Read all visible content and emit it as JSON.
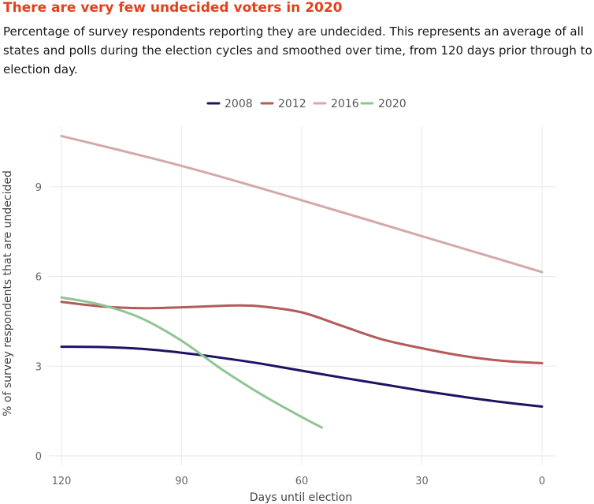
{
  "header": {
    "title": "There are very few undecided voters in 2020",
    "subtitle": "Percentage of survey respondents reporting they are undecided. This represents an average of all states and polls during the election cycles and smoothed over time, from 120 days prior through to election day."
  },
  "chart_data": {
    "type": "line",
    "title": "There are very few undecided voters in 2020",
    "xlabel": "Days until election",
    "ylabel": "% of survey respondents that are undecided",
    "x_reversed": true,
    "xlim": [
      0,
      120
    ],
    "ylim": [
      0,
      11
    ],
    "x_ticks": [
      120,
      90,
      60,
      30,
      0
    ],
    "y_ticks": [
      0,
      3,
      6,
      9
    ],
    "grid": true,
    "legend_position": "top-center",
    "series": [
      {
        "name": "2008",
        "color": "#1b1464",
        "x": [
          120,
          110,
          100,
          90,
          80,
          70,
          60,
          50,
          40,
          30,
          20,
          10,
          0
        ],
        "y": [
          3.65,
          3.64,
          3.58,
          3.45,
          3.28,
          3.08,
          2.85,
          2.62,
          2.4,
          2.18,
          1.98,
          1.8,
          1.65
        ]
      },
      {
        "name": "2012",
        "color": "#b55a5a",
        "x": [
          120,
          110,
          100,
          90,
          80,
          75,
          70,
          60,
          50,
          40,
          30,
          20,
          10,
          0
        ],
        "y": [
          5.15,
          5.0,
          4.94,
          4.97,
          5.02,
          5.03,
          5.0,
          4.8,
          4.35,
          3.9,
          3.6,
          3.35,
          3.18,
          3.1
        ]
      },
      {
        "name": "2016",
        "color": "#d4a9a9",
        "x": [
          120,
          90,
          60,
          30,
          0
        ],
        "y": [
          10.7,
          9.7,
          8.55,
          7.35,
          6.15
        ]
      },
      {
        "name": "2020",
        "color": "#8fc594",
        "x": [
          120,
          110,
          100,
          90,
          80,
          70,
          60,
          55
        ],
        "y": [
          5.3,
          5.05,
          4.6,
          3.85,
          2.9,
          2.05,
          1.3,
          0.95
        ]
      }
    ]
  }
}
